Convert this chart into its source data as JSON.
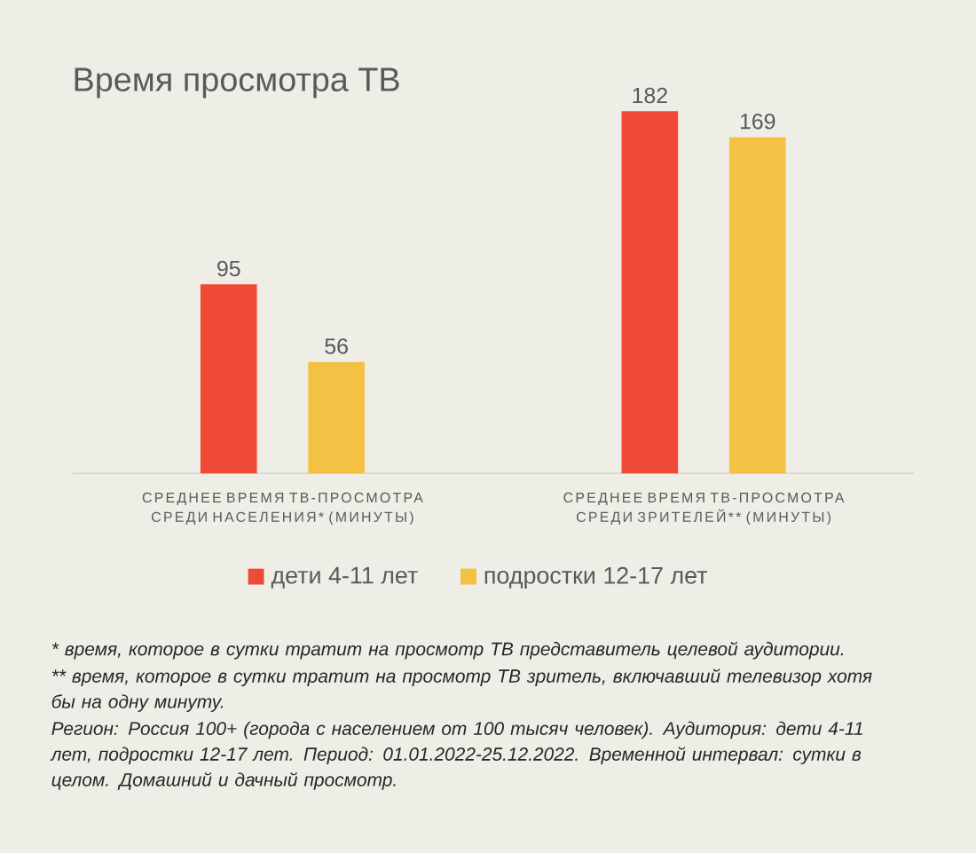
{
  "chart_data": {
    "type": "bar",
    "title": "Время просмотра ТВ",
    "categories": [
      "СРЕДНЕЕ ВРЕМЯ ТВ-ПРОСМОТРА СРЕДИ НАСЕЛЕНИЯ* (МИНУТЫ)",
      "СРЕДНЕЕ ВРЕМЯ ТВ-ПРОСМОТРА СРЕДИ ЗРИТЕЛЕЙ** (МИНУТЫ)"
    ],
    "series": [
      {
        "name": "дети 4-11 лет",
        "color": "#f04a37",
        "values": [
          95,
          182
        ]
      },
      {
        "name": "подростки 12-17 лет",
        "color": "#f3c143",
        "values": [
          56,
          169
        ]
      }
    ],
    "data_labels": true,
    "legend": "bottom",
    "annotations": [
      "* время, которое в сутки тратит на просмотр ТВ представитель целевой аудитории.",
      "** время, которое в сутки тратит на просмотр ТВ зритель, включавший телевизор хотя бы на одну минуту.",
      "Регион: Россия 100+ (города с населением от 100 тысяч человек). Аудитория: дети 4-11 лет, подростки 12-17 лет. Период: 01.01.2022-25.12.2022. Временной интервал: сутки в целом. Домашний и дачный просмотр."
    ]
  }
}
